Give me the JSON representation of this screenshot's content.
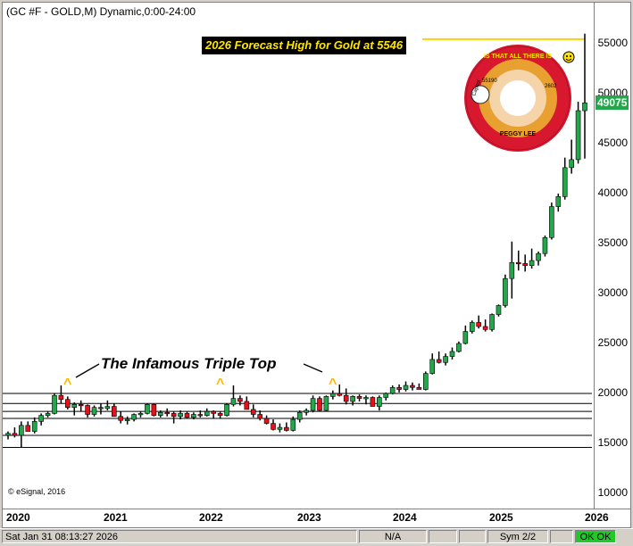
{
  "title": "(GC #F - GOLD,M) Dynamic,0:00-24:00",
  "copyright": "© eSignal, 2016",
  "forecast_label": "2026 Forecast High for Gold at  5546",
  "annotation": "The Infamous Triple Top",
  "caret": "^",
  "last_price": "49075",
  "record": {
    "title": "IS THAT ALL THERE IS",
    "artist": "PEGGY LEE",
    "label": "Capitol",
    "catalog": "2602",
    "number": "55190"
  },
  "colors": {
    "up": "#22a84a",
    "down": "#e8101a",
    "forecast": "#ffd000",
    "last_price_bg": "#22a84a"
  },
  "status": {
    "datetime": "Sat Jan 31 08:13:27 2026",
    "na": "N/A",
    "sym": "Sym 2/2",
    "ok": "OK OK"
  },
  "chart_data": {
    "type": "candlestick",
    "title": "(GC #F - GOLD,M) Dynamic,0:00-24:00",
    "y_ticks": [
      "55000",
      "50000",
      "45000",
      "40000",
      "35000",
      "30000",
      "25000",
      "20000",
      "15000",
      "10000"
    ],
    "x_ticks": [
      "2020",
      "2021",
      "2022",
      "2023",
      "2024",
      "2025",
      "2026"
    ],
    "ylim": [
      10000,
      57000
    ],
    "forecast_high": 5546,
    "last_price": 49075,
    "horizontal_levels": [
      20000,
      19000,
      18200,
      17500,
      15800,
      14600
    ],
    "candles": [
      [
        15800,
        16200,
        15400,
        16000
      ],
      [
        16000,
        16600,
        15600,
        15800
      ],
      [
        15800,
        17200,
        14600,
        16800
      ],
      [
        16800,
        17200,
        16300,
        16200
      ],
      [
        16200,
        17600,
        16000,
        17200
      ],
      [
        17200,
        18000,
        16800,
        17800
      ],
      [
        17800,
        18200,
        17600,
        18000
      ],
      [
        18000,
        20000,
        17900,
        19800
      ],
      [
        19800,
        20800,
        19000,
        19400
      ],
      [
        19400,
        19700,
        18400,
        18600
      ],
      [
        18600,
        19100,
        17800,
        18900
      ],
      [
        18900,
        19300,
        18200,
        18800
      ],
      [
        18800,
        18900,
        17600,
        17900
      ],
      [
        17900,
        18800,
        17700,
        18600
      ],
      [
        18600,
        19000,
        17900,
        18500
      ],
      [
        18500,
        19300,
        18300,
        18700
      ],
      [
        18700,
        19000,
        17800,
        17700
      ],
      [
        17700,
        18200,
        17000,
        17300
      ],
      [
        17300,
        17700,
        16900,
        17400
      ],
      [
        17400,
        18000,
        17200,
        17900
      ],
      [
        17900,
        18200,
        17600,
        18000
      ],
      [
        18000,
        19000,
        17900,
        18900
      ],
      [
        18900,
        19000,
        17700,
        17800
      ],
      [
        17800,
        18300,
        17600,
        18100
      ],
      [
        18100,
        18500,
        17700,
        18000
      ],
      [
        18000,
        18200,
        17000,
        17700
      ],
      [
        17700,
        18300,
        17400,
        18000
      ],
      [
        18000,
        18200,
        17500,
        17600
      ],
      [
        17600,
        18100,
        17400,
        17900
      ],
      [
        17900,
        18300,
        17600,
        17800
      ],
      [
        17800,
        18500,
        17700,
        18200
      ],
      [
        18200,
        18300,
        17500,
        18000
      ],
      [
        18000,
        18200,
        17500,
        17800
      ],
      [
        17800,
        19000,
        17700,
        18900
      ],
      [
        18900,
        20800,
        18700,
        19500
      ],
      [
        19500,
        19800,
        18800,
        19200
      ],
      [
        19200,
        19700,
        18600,
        18400
      ],
      [
        18400,
        18900,
        17600,
        17900
      ],
      [
        17900,
        18300,
        17300,
        17500
      ],
      [
        17500,
        17800,
        16900,
        17000
      ],
      [
        17000,
        17400,
        16300,
        16400
      ],
      [
        16400,
        17000,
        16100,
        16600
      ],
      [
        16600,
        17100,
        16200,
        16300
      ],
      [
        16300,
        17700,
        16200,
        17400
      ],
      [
        17400,
        18300,
        17100,
        18100
      ],
      [
        18100,
        18500,
        17800,
        18300
      ],
      [
        18300,
        19800,
        18100,
        19500
      ],
      [
        19500,
        19700,
        18200,
        18300
      ],
      [
        18300,
        19800,
        18200,
        19700
      ],
      [
        19700,
        20300,
        19400,
        20000
      ],
      [
        20000,
        20900,
        19700,
        19800
      ],
      [
        19800,
        20500,
        18900,
        19200
      ],
      [
        19200,
        19800,
        18800,
        19700
      ],
      [
        19700,
        19900,
        19200,
        19500
      ],
      [
        19500,
        19800,
        18900,
        19600
      ],
      [
        19600,
        19700,
        18700,
        18700
      ],
      [
        18700,
        19800,
        18300,
        19600
      ],
      [
        19600,
        20100,
        19300,
        20000
      ],
      [
        20000,
        20800,
        19900,
        20600
      ],
      [
        20600,
        20900,
        20100,
        20400
      ],
      [
        20400,
        21200,
        20200,
        20800
      ],
      [
        20800,
        21100,
        20300,
        20600
      ],
      [
        20600,
        21000,
        20400,
        20400
      ],
      [
        20400,
        22200,
        20300,
        22000
      ],
      [
        22000,
        24000,
        21900,
        23400
      ],
      [
        23400,
        24200,
        23000,
        23100
      ],
      [
        23100,
        24000,
        22800,
        23700
      ],
      [
        23700,
        24600,
        23400,
        24200
      ],
      [
        24200,
        25200,
        24100,
        25000
      ],
      [
        25000,
        26800,
        24900,
        26200
      ],
      [
        26200,
        27300,
        26000,
        27100
      ],
      [
        27100,
        27800,
        26500,
        26700
      ],
      [
        26700,
        27400,
        26200,
        26400
      ],
      [
        26400,
        28000,
        26200,
        27900
      ],
      [
        27900,
        28900,
        27700,
        28800
      ],
      [
        28800,
        31900,
        28600,
        31500
      ],
      [
        31500,
        35200,
        29500,
        33100
      ],
      [
        33100,
        34300,
        32300,
        33000
      ],
      [
        33000,
        33900,
        32200,
        32800
      ],
      [
        32800,
        34500,
        32500,
        33300
      ],
      [
        33300,
        34200,
        32800,
        34000
      ],
      [
        34000,
        35800,
        33700,
        35600
      ],
      [
        35600,
        39100,
        35400,
        38700
      ],
      [
        38700,
        40000,
        38200,
        39700
      ],
      [
        39700,
        43600,
        39400,
        42600
      ],
      [
        42600,
        45400,
        42000,
        43400
      ],
      [
        43400,
        49200,
        43000,
        48300
      ],
      [
        48300,
        56000,
        43500,
        49075
      ]
    ]
  }
}
